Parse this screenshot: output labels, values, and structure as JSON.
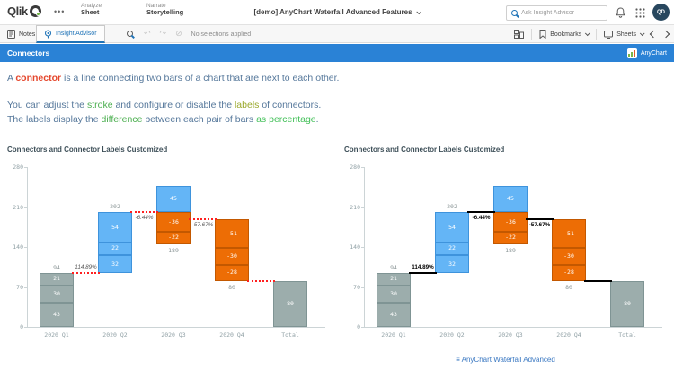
{
  "theme": {
    "banner_blue": "#2a82d6",
    "qlik_green": "#6cb33f",
    "link_blue": "#3a78c2",
    "body_text": "#56789b"
  },
  "header": {
    "logo_text": "Qlik",
    "overflow": "•••",
    "nav_analyze_small": "Analyze",
    "nav_analyze_big": "Sheet",
    "nav_narrate_small": "Narrate",
    "nav_narrate_big": "Storytelling",
    "app_title": "[demo] AnyChart Waterfall Advanced Features",
    "search_placeholder": "Ask Insight Advisor",
    "avatar_initials": "QD"
  },
  "toolbar": {
    "notes": "Notes",
    "insight_advisor": "Insight Advisor",
    "undo_icon": "↶",
    "redo_icon": "↷",
    "clear_icon": "⊘",
    "selections_status": "No selections applied",
    "bookmarks": "Bookmarks",
    "sheets": "Sheets"
  },
  "banner": {
    "title": "Connectors",
    "badge": "AnyChart"
  },
  "intro": {
    "line1": [
      {
        "text": "A ",
        "color": "#56789b",
        "bold": false
      },
      {
        "text": "connector",
        "color": "#e5472d",
        "bold": true
      },
      {
        "text": " is a line connecting two bars of a chart that are next to each other.",
        "color": "#56789b",
        "bold": false
      }
    ],
    "line2": [
      {
        "text": "You can adjust the ",
        "color": "#56789b",
        "bold": false
      },
      {
        "text": "stroke",
        "color": "#4caf50",
        "bold": false
      },
      {
        "text": " and configure or disable the ",
        "color": "#56789b",
        "bold": false
      },
      {
        "text": "labels",
        "color": "#9aa82c",
        "bold": false
      },
      {
        "text": " of connectors.",
        "color": "#56789b",
        "bold": false
      }
    ],
    "line3": [
      {
        "text": "The labels display the ",
        "color": "#56789b",
        "bold": false
      },
      {
        "text": "difference",
        "color": "#4caf50",
        "bold": false
      },
      {
        "text": " between each pair of bars ",
        "color": "#56789b",
        "bold": false
      },
      {
        "text": "as percentage",
        "color": "#43c059",
        "bold": false
      },
      {
        "text": ".",
        "color": "#56789b",
        "bold": false
      }
    ]
  },
  "footer": {
    "icon": "≡",
    "link": "AnyChart Waterfall Advanced"
  },
  "chart_data": [
    {
      "type": "waterfall",
      "title": "Connectors and Connector Labels Customized",
      "categories": [
        "2020 Q1",
        "2020 Q2",
        "2020 Q3",
        "2020 Q4",
        "Total"
      ],
      "segments": [
        [
          43,
          30,
          21
        ],
        [
          32,
          22,
          54
        ],
        [
          45,
          -36,
          -22
        ],
        [
          -51,
          -30,
          -28
        ]
      ],
      "cumulative": [
        94,
        202,
        189,
        80
      ],
      "total": 80,
      "end_labels": [
        "94",
        "202",
        "189",
        "80"
      ],
      "total_label": "80",
      "connectors": [
        {
          "label": "114.89%",
          "position": "above"
        },
        {
          "label": "-6.44%",
          "position": "below"
        },
        {
          "label": "-57.67%",
          "position": "below"
        },
        {
          "label": "",
          "position": "above"
        }
      ],
      "ylim": [
        0,
        280
      ],
      "yticks": [
        0,
        70,
        140,
        210,
        280
      ],
      "colors": {
        "rising": "#64b5f6",
        "rising_border": "#3e93dc",
        "falling": "#ed6d05",
        "falling_border": "#c35800",
        "total": "#9cadac",
        "total_border": "#7f9494"
      },
      "connector_style": {
        "line": "dotted",
        "color": "#ff2020",
        "width": 2,
        "label_color": "#555555",
        "label_weight": "normal",
        "label_style": "italic"
      }
    },
    {
      "type": "waterfall",
      "title": "Connectors and Connector Labels Customized",
      "categories": [
        "2020 Q1",
        "2020 Q2",
        "2020 Q3",
        "2020 Q4",
        "Total"
      ],
      "segments": [
        [
          43,
          30,
          21
        ],
        [
          32,
          22,
          54
        ],
        [
          45,
          -36,
          -22
        ],
        [
          -51,
          -30,
          -28
        ]
      ],
      "cumulative": [
        94,
        202,
        189,
        80
      ],
      "total": 80,
      "end_labels": [
        "94",
        "202",
        "189",
        "80"
      ],
      "total_label": "80",
      "connectors": [
        {
          "label": "114.89%",
          "position": "above"
        },
        {
          "label": "-6.44%",
          "position": "below"
        },
        {
          "label": "-57.67%",
          "position": "below"
        },
        {
          "label": "",
          "position": "above"
        }
      ],
      "ylim": [
        0,
        280
      ],
      "yticks": [
        0,
        70,
        140,
        210,
        280
      ],
      "colors": {
        "rising": "#64b5f6",
        "rising_border": "#3e93dc",
        "falling": "#ed6d05",
        "falling_border": "#c35800",
        "total": "#9cadac",
        "total_border": "#7f9494"
      },
      "connector_style": {
        "line": "solid",
        "color": "#000000",
        "width": 2,
        "label_color": "#000000",
        "label_weight": "bold",
        "label_style": "normal"
      }
    }
  ]
}
